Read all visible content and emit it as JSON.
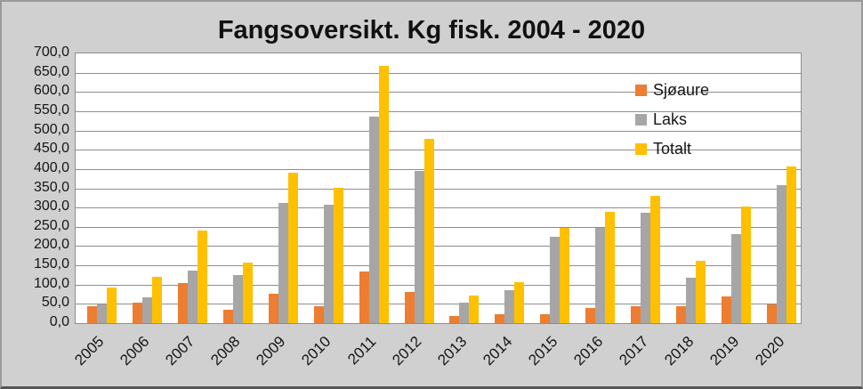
{
  "window": {
    "background": "#D0D0D0"
  },
  "chart_data": {
    "type": "bar",
    "title": "Fangsoversikt. Kg fisk. 2004 - 2020",
    "xlabel": "",
    "ylabel": "",
    "categories": [
      "2005",
      "2006",
      "2007",
      "2008",
      "2009",
      "2010",
      "2011",
      "2012",
      "2013",
      "2014",
      "2015",
      "2016",
      "2017",
      "2018",
      "2019",
      "2020"
    ],
    "series": [
      {
        "name": "Sjøaure",
        "color": "#ED7D31",
        "values": [
          44,
          53,
          104,
          34,
          77,
          44,
          133,
          82,
          18,
          22,
          24,
          40,
          44,
          43,
          70,
          48
        ]
      },
      {
        "name": "Laks",
        "color": "#A6A6A6",
        "values": [
          48,
          68,
          136,
          124,
          313,
          308,
          535,
          396,
          53,
          85,
          224,
          248,
          287,
          118,
          232,
          358
        ]
      },
      {
        "name": "Totalt",
        "color": "#FFC000",
        "values": [
          92,
          121,
          240,
          158,
          390,
          352,
          668,
          478,
          71,
          107,
          248,
          288,
          331,
          161,
          302,
          406
        ]
      }
    ],
    "ylim": [
      0,
      700
    ],
    "ytick_step": 50,
    "ytick_labels": [
      "0,0",
      "50,0",
      "100,0",
      "150,0",
      "200,0",
      "250,0",
      "300,0",
      "350,0",
      "400,0",
      "450,0",
      "500,0",
      "550,0",
      "600,0",
      "650,0",
      "700,0"
    ],
    "grid": "horizontal",
    "legend_position": "inside-top-right",
    "gridline_color": "#8E8E8E",
    "text_color": "#151515"
  }
}
